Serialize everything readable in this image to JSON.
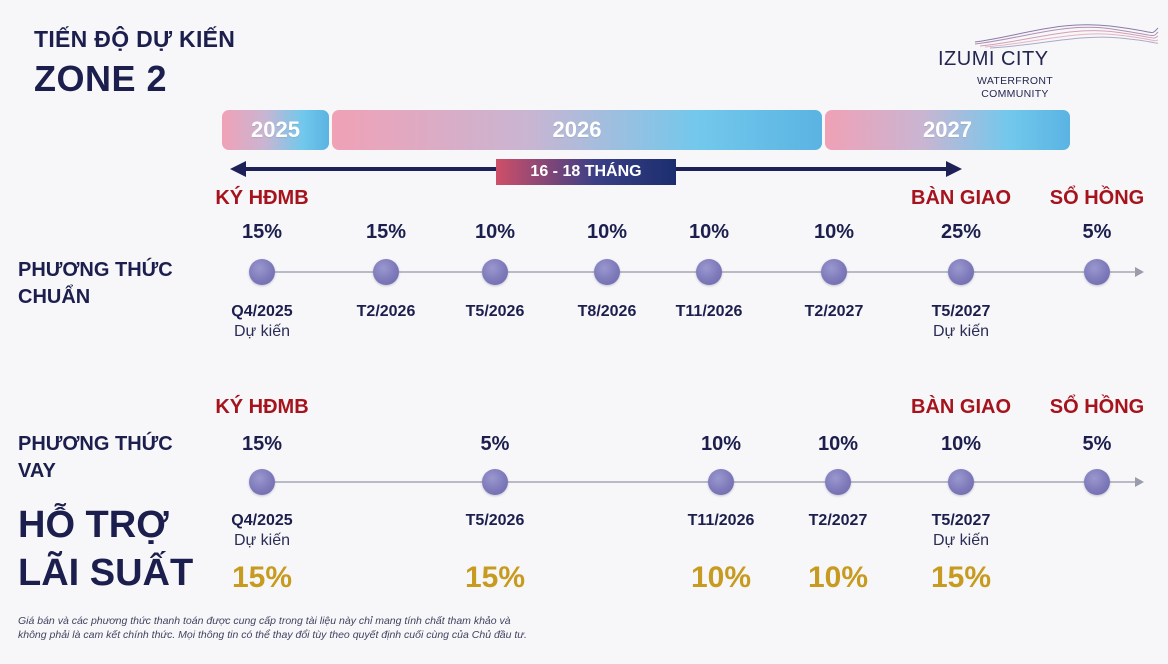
{
  "header": {
    "subtitle": "TIẾN ĐỘ DỰ KIẾN",
    "title": "ZONE 2"
  },
  "logo": {
    "name": "IZUMI CITY",
    "sub_line1": "WATERFRONT",
    "sub_line2": "COMMUNITY"
  },
  "years": [
    "2025",
    "2026",
    "2027"
  ],
  "duration_label": "16 - 18 THÁNG",
  "milestones": {
    "sign": "KÝ HĐMB",
    "handover": "BÀN GIAO",
    "pink_book": "SỔ HỒNG"
  },
  "standard": {
    "label_line1": "PHƯƠNG THỨC",
    "label_line2": "CHUẨN",
    "points": [
      {
        "pct": "15%",
        "date": "Q4/2025",
        "note": "Dự kiến"
      },
      {
        "pct": "15%",
        "date": "T2/2026",
        "note": ""
      },
      {
        "pct": "10%",
        "date": "T5/2026",
        "note": ""
      },
      {
        "pct": "10%",
        "date": "T8/2026",
        "note": ""
      },
      {
        "pct": "10%",
        "date": "T11/2026",
        "note": ""
      },
      {
        "pct": "10%",
        "date": "T2/2027",
        "note": ""
      },
      {
        "pct": "25%",
        "date": "T5/2027",
        "note": "Dự kiến"
      },
      {
        "pct": "5%",
        "date": "",
        "note": ""
      }
    ]
  },
  "loan": {
    "label_line1": "PHƯƠNG THỨC",
    "label_line2": "VAY",
    "support_line1": "HỖ TRỢ",
    "support_line2": "LÃI SUẤT",
    "points": [
      {
        "pct": "15%",
        "date": "Q4/2025",
        "note": "Dự kiến",
        "support": "15%"
      },
      {
        "pct": "5%",
        "date": "T5/2026",
        "note": "",
        "support": "15%"
      },
      {
        "pct": "10%",
        "date": "T11/2026",
        "note": "",
        "support": "10%"
      },
      {
        "pct": "10%",
        "date": "T2/2027",
        "note": "",
        "support": "10%"
      },
      {
        "pct": "10%",
        "date": "T5/2027",
        "note": "Dự kiến",
        "support": "15%"
      },
      {
        "pct": "5%",
        "date": "",
        "note": "",
        "support": ""
      }
    ]
  },
  "disclaimer": {
    "line1": "Giá bán và các phương thức thanh toán được cung cấp trong tài liệu này chỉ mang tính chất tham khảo và",
    "line2": "không phải là cam kết chính thức. Mọi thông tin có thể thay đổi tùy theo quyết định cuối cùng của Chủ đầu tư."
  }
}
